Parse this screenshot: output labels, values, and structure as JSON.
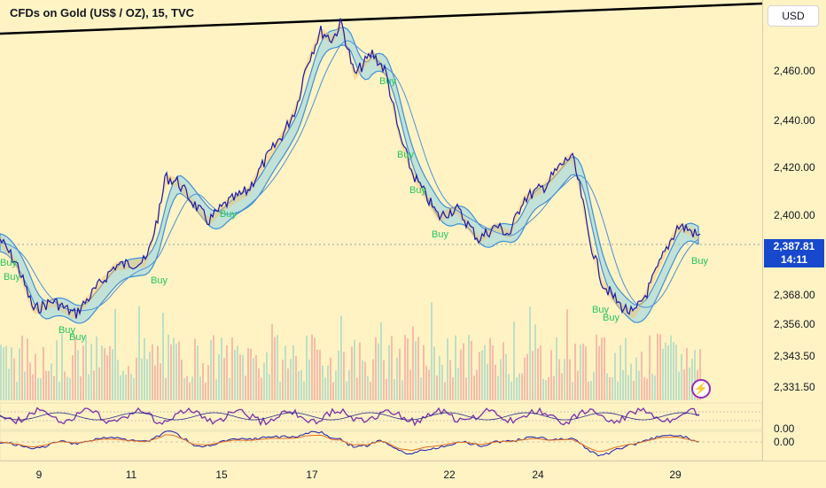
{
  "header": {
    "title": "CFDs on Gold (US$ / OZ), 15, TVC"
  },
  "currency_button": {
    "label": "USD"
  },
  "price_axis": {
    "ticks": [
      "2,460.00",
      "2,440.00",
      "2,420.00",
      "2,400.00",
      "2,368.00",
      "2,356.00",
      "2,343.50",
      "2,331.50",
      "0.00",
      "0.00"
    ]
  },
  "current_price": {
    "price": "2,387.81",
    "countdown": "14:11"
  },
  "time_axis": {
    "ticks": [
      "9",
      "11",
      "15",
      "17",
      "22",
      "24",
      "29"
    ]
  },
  "signal_label": "Buy",
  "colors": {
    "background": "#fff3c4",
    "price_line": "#1a1aa8",
    "badge": "#1848cc",
    "buy": "#22c55e",
    "oscillator": "#7b2fa8"
  },
  "icons": {
    "flash": "lightning-icon"
  }
}
